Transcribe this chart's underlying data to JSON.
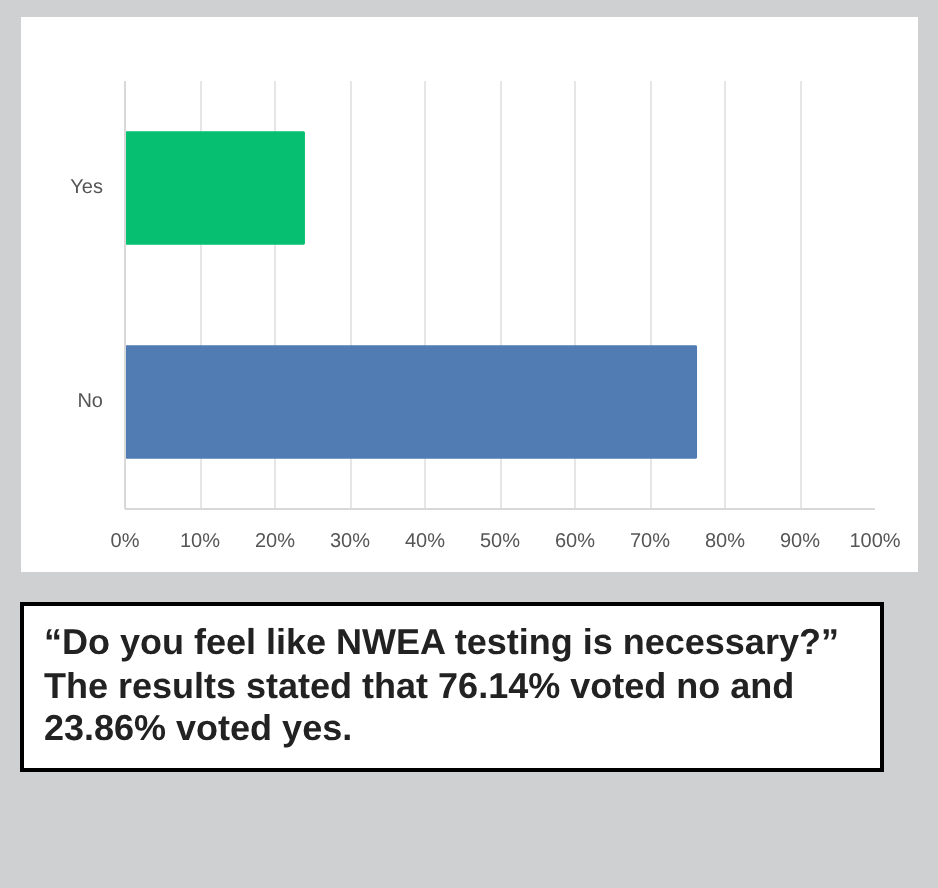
{
  "chart_data": {
    "type": "bar",
    "orientation": "horizontal",
    "categories": [
      "Yes",
      "No"
    ],
    "values": [
      23.86,
      76.14
    ],
    "colors": [
      "#06bf71",
      "#507cb3"
    ],
    "xlim": [
      0,
      100
    ],
    "xticks": [
      {
        "value": 0,
        "label": "0%"
      },
      {
        "value": 10,
        "label": "10%"
      },
      {
        "value": 20,
        "label": "20%"
      },
      {
        "value": 30,
        "label": "30%"
      },
      {
        "value": 40,
        "label": "40%"
      },
      {
        "value": 50,
        "label": "50%"
      },
      {
        "value": 60,
        "label": "60%"
      },
      {
        "value": 70,
        "label": "70%"
      },
      {
        "value": 80,
        "label": "80%"
      },
      {
        "value": 90,
        "label": "90%"
      },
      {
        "value": 100,
        "label": "100%"
      }
    ],
    "grid": "x",
    "annotations": [
      "“Do you feel like NWEA testing is necessary?” The results stated that 76.14% voted no and 23.86% voted yes."
    ]
  }
}
